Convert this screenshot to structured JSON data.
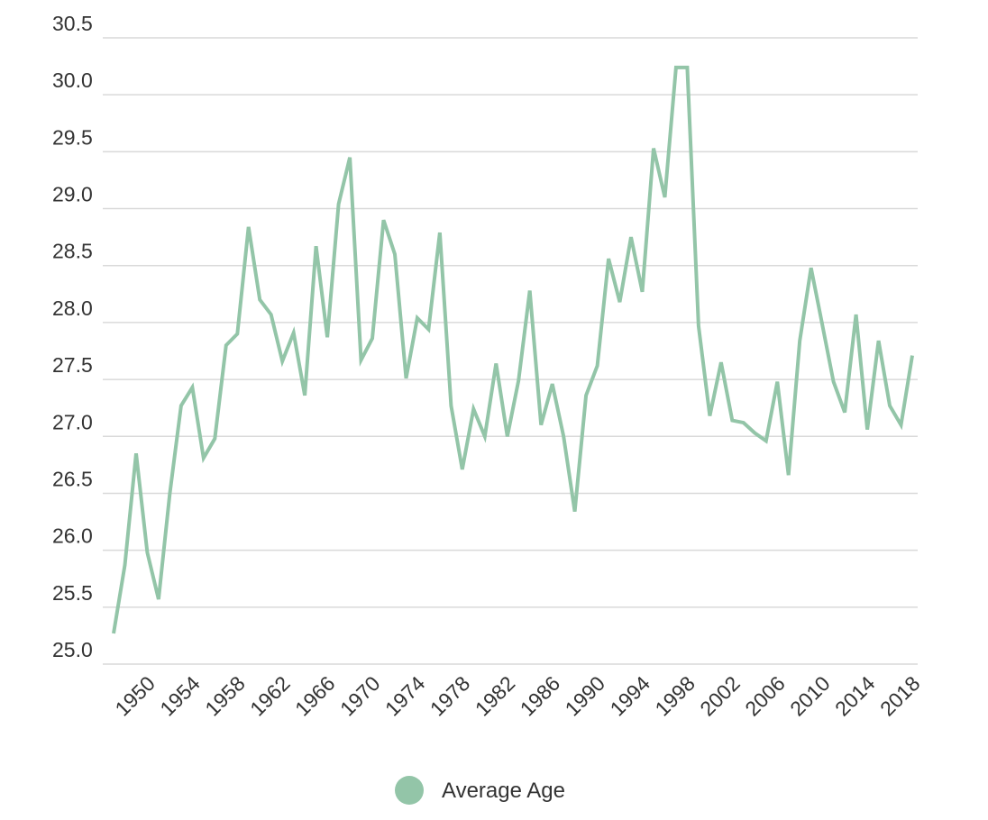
{
  "chart_data": {
    "type": "line",
    "title": "",
    "xlabel": "",
    "ylabel": "",
    "ylim": [
      25.0,
      30.5
    ],
    "yticks": [
      25.0,
      25.5,
      26.0,
      26.5,
      27.0,
      27.5,
      28.0,
      28.5,
      29.0,
      29.5,
      30.0,
      30.5
    ],
    "ytick_labels": [
      "25.0",
      "25.5",
      "26.0",
      "26.5",
      "27.0",
      "27.5",
      "28.0",
      "28.5",
      "29.0",
      "29.5",
      "30.0",
      "30.5"
    ],
    "xlim": [
      1947,
      2018
    ],
    "xtick_labels": [
      "1950",
      "1954",
      "1958",
      "1962",
      "1966",
      "1970",
      "1974",
      "1978",
      "1982",
      "1986",
      "1990",
      "1994",
      "1998",
      "2002",
      "2006",
      "2010",
      "2014",
      "2018"
    ],
    "grid": true,
    "legend_position": "bottom",
    "series": [
      {
        "name": "Average Age",
        "color": "#93c5a8",
        "x": [
          1947,
          1948,
          1949,
          1950,
          1951,
          1952,
          1953,
          1954,
          1955,
          1956,
          1957,
          1958,
          1959,
          1960,
          1961,
          1962,
          1963,
          1964,
          1965,
          1966,
          1967,
          1968,
          1969,
          1970,
          1971,
          1972,
          1973,
          1974,
          1975,
          1976,
          1977,
          1978,
          1979,
          1980,
          1981,
          1982,
          1983,
          1984,
          1985,
          1986,
          1987,
          1988,
          1989,
          1990,
          1991,
          1992,
          1993,
          1994,
          1995,
          1996,
          1997,
          1998,
          1999,
          2000,
          2001,
          2002,
          2003,
          2004,
          2005,
          2006,
          2007,
          2008,
          2009,
          2010,
          2011,
          2012,
          2013,
          2014,
          2015,
          2016,
          2017,
          2018
        ],
        "values": [
          25.27,
          25.87,
          26.85,
          25.98,
          25.57,
          26.5,
          27.27,
          27.43,
          26.81,
          26.98,
          27.8,
          27.9,
          28.84,
          28.2,
          28.07,
          27.66,
          27.91,
          27.36,
          28.67,
          27.87,
          29.04,
          29.45,
          27.67,
          27.86,
          28.9,
          28.6,
          27.51,
          28.04,
          27.94,
          28.79,
          27.27,
          26.71,
          27.24,
          27.0,
          27.64,
          27.0,
          27.49,
          28.28,
          27.1,
          27.46,
          27.0,
          26.34,
          27.36,
          27.62,
          28.56,
          28.18,
          28.75,
          28.27,
          29.53,
          29.1,
          30.24,
          30.24,
          27.97,
          27.18,
          27.65,
          27.14,
          27.12,
          27.03,
          26.96,
          27.48,
          26.66,
          27.84,
          28.48,
          27.98,
          27.48,
          27.21,
          28.07,
          27.06,
          27.84,
          27.27,
          27.1,
          27.71
        ]
      }
    ]
  },
  "legend": {
    "label": "Average Age",
    "color": "#93c5a8"
  },
  "colors": {
    "grid": "#d9d9d9",
    "axis_text": "#333333"
  }
}
